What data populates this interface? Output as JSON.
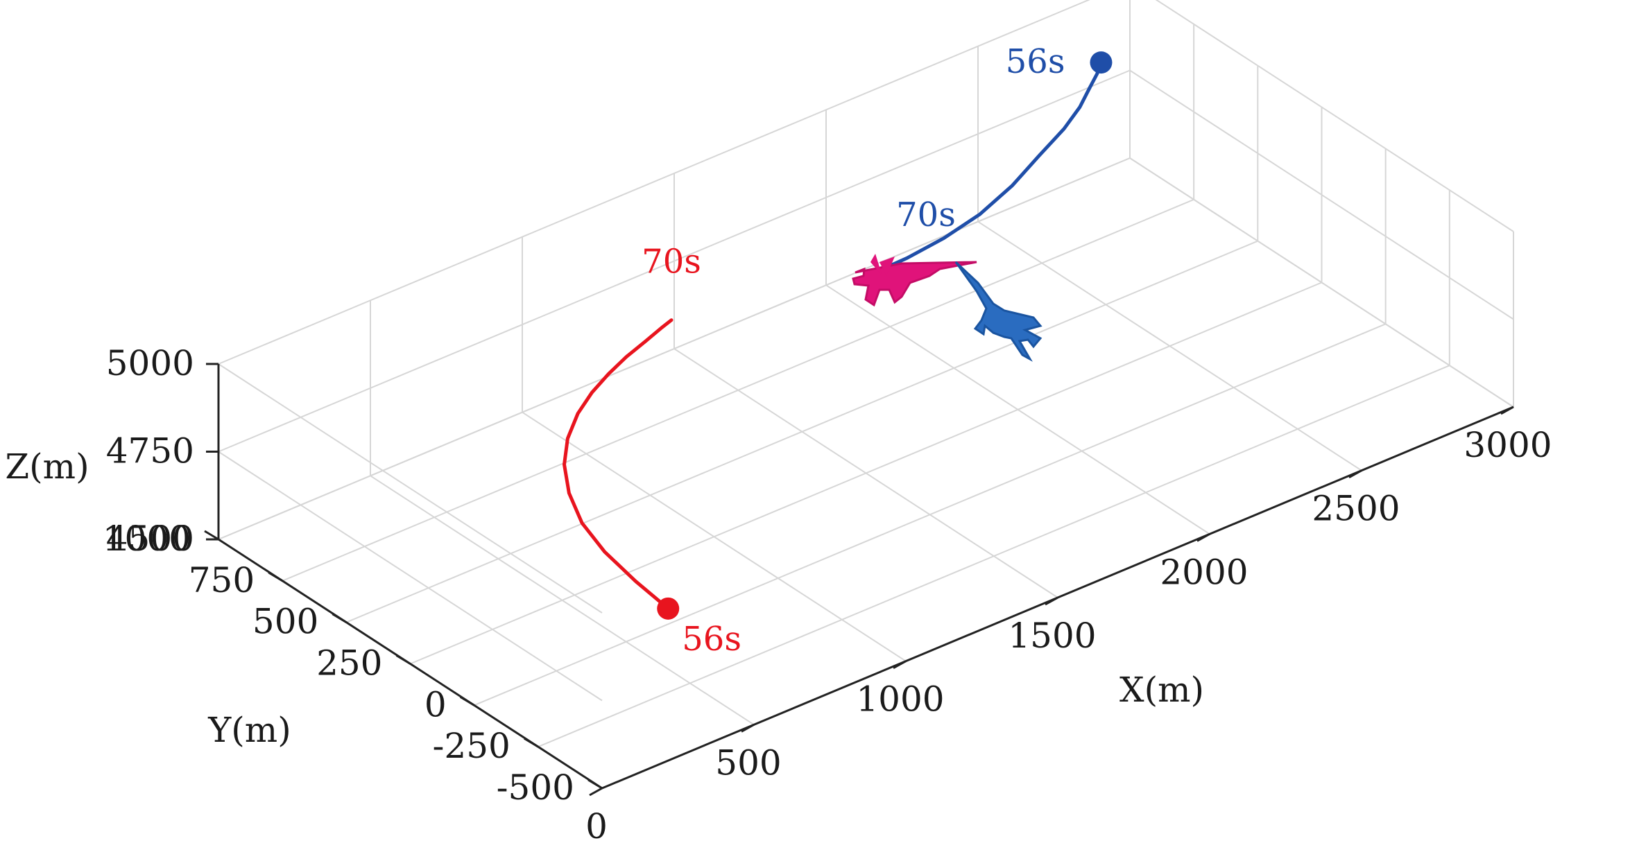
{
  "chart_data": {
    "type": "line3d",
    "xlabel": "X(m)",
    "ylabel": "Y(m)",
    "zlabel": "Z(m)",
    "xlim": [
      0,
      3000
    ],
    "ylim": [
      -500,
      1000
    ],
    "zlim": [
      4500,
      5000
    ],
    "xticks": [
      "0",
      "500",
      "1000",
      "1500",
      "2000",
      "2500",
      "3000"
    ],
    "yticks": [
      "-500",
      "-250",
      "0",
      "250",
      "500",
      "750",
      "1000"
    ],
    "zticks": [
      "4500",
      "4750",
      "5000"
    ],
    "grid": true,
    "colors": {
      "red_track": "#e8141e",
      "blue_track": "#1f4ea8",
      "red_aircraft": "#e0137a",
      "blue_aircraft": "#2a6cc0"
    },
    "series": [
      {
        "color": "red",
        "x": [
          470,
          485,
          505,
          540,
          590,
          650,
          720,
          800,
          880,
          960,
          1040,
          1120,
          1190,
          1230
        ],
        "y": [
          -200,
          -55,
          90,
          220,
          330,
          420,
          490,
          545,
          585,
          615,
          640,
          660,
          680,
          690
        ],
        "z": [
          4700,
          4704,
          4712,
          4720,
          4735,
          4752,
          4768,
          4784,
          4796,
          4806,
          4814,
          4820,
          4824,
          4826
        ],
        "labels": [
          {
            "text": "56s",
            "index": 0
          },
          {
            "text": "70s",
            "index": 13
          }
        ]
      },
      {
        "color": "blue",
        "x": [
          2720,
          2690,
          2640,
          2570,
          2480,
          2360,
          2230,
          2090,
          1950,
          1820,
          1700
        ],
        "y": [
          780,
          760,
          730,
          685,
          640,
          595,
          545,
          505,
          480,
          470,
          470
        ],
        "z": [
          4978,
          4966,
          4958,
          4950,
          4942,
          4930,
          4916,
          4904,
          4898,
          4893,
          4890
        ],
        "labels": [
          {
            "text": "56s",
            "index": 0
          },
          {
            "text": "70s",
            "index": 10
          }
        ]
      }
    ]
  }
}
